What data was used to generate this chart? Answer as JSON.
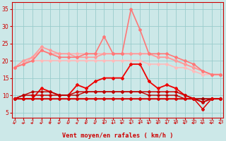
{
  "x": [
    0,
    1,
    2,
    3,
    4,
    5,
    6,
    7,
    8,
    9,
    10,
    11,
    12,
    13,
    14,
    15,
    16,
    17,
    18,
    19,
    20,
    21,
    22,
    23
  ],
  "lines": [
    {
      "y": [
        18,
        19,
        20,
        20,
        20,
        20,
        20,
        20,
        20,
        20,
        20,
        20,
        20,
        20,
        20,
        19,
        19,
        19,
        18,
        18,
        17,
        16,
        16,
        16
      ],
      "color": "#ffbbbb",
      "lw": 1.2,
      "marker": "D",
      "ms": 2.0
    },
    {
      "y": [
        18,
        19,
        21,
        23,
        22,
        22,
        22,
        22,
        22,
        22,
        22,
        22,
        22,
        22,
        22,
        22,
        21,
        21,
        20,
        19,
        18,
        17,
        16,
        16
      ],
      "color": "#ffaaaa",
      "lw": 1.2,
      "marker": "D",
      "ms": 2.0
    },
    {
      "y": [
        18,
        20,
        21,
        24,
        23,
        22,
        22,
        21,
        21,
        21,
        22,
        22,
        22,
        22,
        22,
        22,
        21,
        21,
        20,
        19,
        18,
        17,
        16,
        16
      ],
      "color": "#ff9999",
      "lw": 1.2,
      "marker": "D",
      "ms": 2.0
    },
    {
      "y": [
        18,
        19,
        20,
        23,
        22,
        21,
        21,
        21,
        22,
        22,
        27,
        22,
        22,
        35,
        29,
        22,
        22,
        22,
        21,
        20,
        19,
        17,
        16,
        16
      ],
      "color": "#ff7777",
      "lw": 1.2,
      "marker": "D",
      "ms": 2.0
    },
    {
      "y": [
        9,
        9,
        9,
        12,
        11,
        10,
        10,
        13,
        12,
        14,
        15,
        15,
        15,
        19,
        19,
        14,
        12,
        13,
        12,
        10,
        9,
        8,
        9,
        9
      ],
      "color": "#ee0000",
      "lw": 1.3,
      "marker": "D",
      "ms": 2.0
    },
    {
      "y": [
        9,
        10,
        10,
        10,
        10,
        10,
        10,
        11,
        11,
        11,
        11,
        11,
        11,
        11,
        11,
        11,
        11,
        11,
        11,
        10,
        9,
        9,
        9,
        9
      ],
      "color": "#cc0000",
      "lw": 1.1,
      "marker": "D",
      "ms": 2.0
    },
    {
      "y": [
        9,
        10,
        11,
        11,
        11,
        10,
        10,
        10,
        11,
        11,
        11,
        11,
        11,
        11,
        11,
        10,
        10,
        10,
        10,
        9,
        9,
        8,
        9,
        9
      ],
      "color": "#bb0000",
      "lw": 1.0,
      "marker": "D",
      "ms": 1.8
    },
    {
      "y": [
        9,
        9,
        9,
        9,
        9,
        9,
        9,
        9,
        9,
        9,
        9,
        9,
        9,
        9,
        9,
        9,
        9,
        9,
        9,
        9,
        9,
        9,
        9,
        9
      ],
      "color": "#990000",
      "lw": 1.0,
      "marker": "D",
      "ms": 1.8
    },
    {
      "y": [
        9,
        9,
        9,
        9,
        9,
        9,
        9,
        9,
        9,
        9,
        9,
        9,
        9,
        9,
        9,
        9,
        9,
        9,
        9,
        9,
        9,
        6,
        9,
        9
      ],
      "color": "#dd0000",
      "lw": 1.1,
      "marker": "D",
      "ms": 2.0
    }
  ],
  "xlabel": "Vent moyen/en rafales ( km/h )",
  "yticks": [
    5,
    10,
    15,
    20,
    25,
    30,
    35
  ],
  "ylim": [
    3.5,
    37
  ],
  "xlim": [
    -0.3,
    23.3
  ],
  "bg_color": "#cce8e8",
  "grid_color": "#99cccc",
  "tick_color": "#cc0000",
  "label_color": "#cc0000",
  "spine_color": "#cc0000"
}
